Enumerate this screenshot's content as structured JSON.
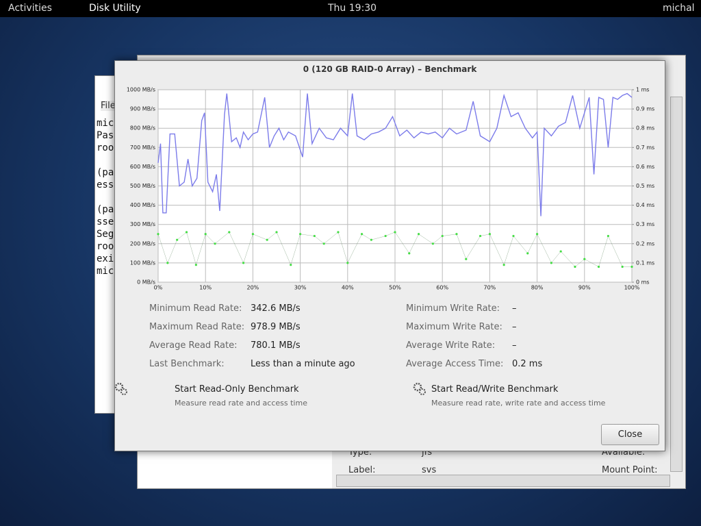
{
  "topbar": {
    "activities": "Activities",
    "app": "Disk Utility",
    "clock": "Thu 19:30",
    "user": "michal"
  },
  "background": {
    "menu": "File",
    "terminal_lines": [
      "mic",
      "Pas",
      "roo",
      "",
      "(pa",
      "ess",
      "",
      "(pa",
      "sse",
      "Seg",
      "roo",
      "exi",
      "mic"
    ],
    "fields": [
      {
        "label": "Type:",
        "value": "jfs",
        "extra": "Available:"
      },
      {
        "label": "Label:",
        "value": "svs",
        "extra": "Mount Point:"
      }
    ]
  },
  "dialog": {
    "title": "0 (120 GB RAID-0 Array) – Benchmark",
    "stats_left": [
      {
        "label": "Minimum Read Rate:",
        "value": "342.6 MB/s"
      },
      {
        "label": "Maximum Read Rate:",
        "value": "978.9 MB/s"
      },
      {
        "label": "Average Read Rate:",
        "value": "780.1 MB/s"
      },
      {
        "label": "Last Benchmark:",
        "value": "Less than a minute ago"
      }
    ],
    "stats_right": [
      {
        "label": "Minimum Write Rate:",
        "value": "–"
      },
      {
        "label": "Maximum Write Rate:",
        "value": "–"
      },
      {
        "label": "Average Write Rate:",
        "value": "–"
      },
      {
        "label": "Average Access Time:",
        "value": "0.2 ms"
      }
    ],
    "buttons": [
      {
        "title": "Start Read-Only Benchmark",
        "subtitle": "Measure read rate and access time"
      },
      {
        "title": "Start Read/Write Benchmark",
        "subtitle": "Measure read rate, write rate and access time"
      }
    ],
    "close": "Close"
  },
  "chart_data": {
    "type": "line",
    "xlim": [
      0,
      100
    ],
    "xticks": [
      {
        "value": 0,
        "label": "0%"
      },
      {
        "value": 10,
        "label": "10%"
      },
      {
        "value": 20,
        "label": "20%"
      },
      {
        "value": 30,
        "label": "30%"
      },
      {
        "value": 40,
        "label": "40%"
      },
      {
        "value": 50,
        "label": "50%"
      },
      {
        "value": 60,
        "label": "60%"
      },
      {
        "value": 70,
        "label": "70%"
      },
      {
        "value": 80,
        "label": "80%"
      },
      {
        "value": 90,
        "label": "90%"
      },
      {
        "value": 100,
        "label": "100%"
      }
    ],
    "ylim": [
      0,
      1000
    ],
    "yticks": [
      {
        "value": 0,
        "label": "0 MB/s"
      },
      {
        "value": 100,
        "label": "100 MB/s"
      },
      {
        "value": 200,
        "label": "200 MB/s"
      },
      {
        "value": 300,
        "label": "300 MB/s"
      },
      {
        "value": 400,
        "label": "400 MB/s"
      },
      {
        "value": 500,
        "label": "500 MB/s"
      },
      {
        "value": 600,
        "label": "600 MB/s"
      },
      {
        "value": 700,
        "label": "700 MB/s"
      },
      {
        "value": 800,
        "label": "800 MB/s"
      },
      {
        "value": 900,
        "label": "900 MB/s"
      },
      {
        "value": 1000,
        "label": "1000 MB/s"
      }
    ],
    "y2lim": [
      0,
      1
    ],
    "y2ticks": [
      {
        "value": 0,
        "label": "0 ms"
      },
      {
        "value": 0.1,
        "label": "0.1 ms"
      },
      {
        "value": 0.2,
        "label": "0.2 ms"
      },
      {
        "value": 0.3,
        "label": "0.3 ms"
      },
      {
        "value": 0.4,
        "label": "0.4 ms"
      },
      {
        "value": 0.5,
        "label": "0.5 ms"
      },
      {
        "value": 0.6,
        "label": "0.6 ms"
      },
      {
        "value": 0.7,
        "label": "0.7 ms"
      },
      {
        "value": 0.8,
        "label": "0.8 ms"
      },
      {
        "value": 0.9,
        "label": "0.9 ms"
      },
      {
        "value": 1,
        "label": "1 ms"
      }
    ],
    "grid": true,
    "series": [
      {
        "color": "#7b7bea",
        "x": [
          0,
          0.5,
          1,
          1.7,
          2.5,
          3.5,
          4.5,
          5.5,
          6.3,
          7.2,
          8.2,
          9.2,
          9.8,
          10.5,
          11.5,
          12.3,
          13,
          14,
          14.5,
          15.5,
          16.5,
          17.3,
          18,
          19,
          20,
          21,
          22.5,
          23.5,
          24.5,
          25.5,
          26.5,
          27.5,
          29,
          30.5,
          31.5,
          32.5,
          34,
          35.5,
          37,
          38.5,
          40,
          41,
          42,
          43.5,
          45,
          46.5,
          48,
          49.5,
          51,
          52.5,
          54,
          55.5,
          57,
          58.5,
          60,
          61.5,
          63,
          65,
          66.5,
          68,
          70,
          71.5,
          73,
          74.5,
          76,
          77.5,
          79,
          80,
          80.8,
          81.5,
          83,
          84.5,
          86,
          87.5,
          89,
          90,
          91,
          92,
          93,
          94,
          95,
          96,
          97,
          98,
          99,
          100
        ],
        "values": [
          620,
          720,
          360,
          360,
          770,
          770,
          500,
          520,
          640,
          500,
          540,
          840,
          880,
          520,
          470,
          560,
          370,
          870,
          980,
          730,
          750,
          700,
          780,
          740,
          770,
          780,
          960,
          700,
          760,
          800,
          740,
          780,
          760,
          650,
          980,
          720,
          800,
          750,
          740,
          800,
          760,
          980,
          760,
          740,
          770,
          780,
          800,
          860,
          760,
          790,
          750,
          780,
          770,
          780,
          750,
          800,
          770,
          790,
          940,
          760,
          730,
          800,
          970,
          860,
          880,
          800,
          750,
          780,
          343,
          800,
          760,
          810,
          830,
          970,
          800,
          880,
          960,
          560,
          960,
          950,
          700,
          960,
          950,
          970,
          980,
          960
        ]
      },
      {
        "color": "#44dd44",
        "axis": "y2",
        "markers": true,
        "x": [
          0,
          2,
          4,
          6,
          8,
          10,
          12,
          15,
          18,
          20,
          23,
          25,
          28,
          30,
          33,
          35,
          38,
          40,
          43,
          45,
          48,
          50,
          53,
          55,
          58,
          60,
          63,
          65,
          68,
          70,
          73,
          75,
          78,
          80,
          83,
          85,
          88,
          90,
          93,
          95,
          98,
          100
        ],
        "values": [
          0.25,
          0.1,
          0.22,
          0.26,
          0.09,
          0.25,
          0.2,
          0.26,
          0.1,
          0.25,
          0.22,
          0.26,
          0.09,
          0.25,
          0.24,
          0.2,
          0.26,
          0.1,
          0.25,
          0.22,
          0.24,
          0.26,
          0.15,
          0.25,
          0.2,
          0.24,
          0.25,
          0.12,
          0.24,
          0.25,
          0.09,
          0.24,
          0.15,
          0.25,
          0.1,
          0.16,
          0.08,
          0.12,
          0.08,
          0.24,
          0.08,
          0.08
        ]
      }
    ]
  }
}
